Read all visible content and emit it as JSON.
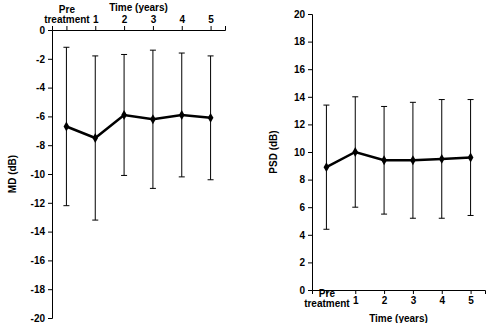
{
  "chart_data": [
    {
      "type": "line",
      "xlabel": "Time (years)",
      "ylabel": "MD (dB)",
      "categories": [
        "Pre treatment",
        "1",
        "2",
        "3",
        "4",
        "5"
      ],
      "values": [
        -6.7,
        -7.5,
        -5.9,
        -6.2,
        -5.9,
        -6.1
      ],
      "error": [
        5.5,
        5.7,
        4.2,
        4.8,
        4.3,
        4.3
      ],
      "color": "#000000",
      "marker": "diamond",
      "ylim": [
        -20,
        0
      ],
      "yticks": [
        -20,
        -18,
        -16,
        -14,
        -12,
        -10,
        -8,
        -6,
        -4,
        -2,
        0
      ]
    },
    {
      "type": "line",
      "xlabel": "Time (years)",
      "ylabel": "PSD (dB)",
      "categories": [
        "Pre treatment",
        "1",
        "2",
        "3",
        "4",
        "5"
      ],
      "values": [
        8.9,
        10.0,
        9.4,
        9.4,
        9.5,
        9.6
      ],
      "error": [
        4.5,
        4.0,
        3.9,
        4.2,
        4.3,
        4.2
      ],
      "color": "#000000",
      "marker": "diamond",
      "ylim": [
        0,
        20
      ],
      "yticks": [
        0,
        2,
        4,
        6,
        8,
        10,
        12,
        14,
        16,
        18,
        20
      ]
    }
  ]
}
